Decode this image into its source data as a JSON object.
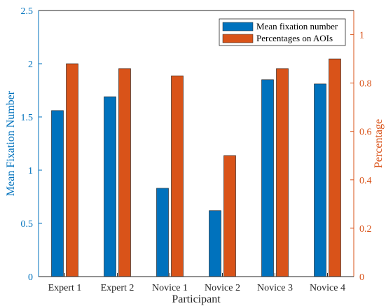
{
  "chart_data": {
    "type": "bar",
    "xlabel": "Participant",
    "categories": [
      "Expert 1",
      "Expert 2",
      "Novice 1",
      "Novice 2",
      "Novice 3",
      "Novice 4"
    ],
    "left_axis": {
      "label": "Mean Fixation Number",
      "ylim": [
        0,
        2.5
      ],
      "ticks": [
        "0",
        "0.5",
        "1",
        "1.5",
        "2",
        "2.5"
      ],
      "color": "#0072BD"
    },
    "right_axis": {
      "label": "Percentage",
      "ylim": [
        0,
        1.1
      ],
      "ticks": [
        "0",
        "0.2",
        "0.4",
        "0.6",
        "0.8",
        "1"
      ],
      "color": "#D95319"
    },
    "series": [
      {
        "name": "Mean fixation number",
        "axis": "left",
        "color": "#0072BD",
        "values": [
          1.56,
          1.69,
          0.83,
          0.62,
          1.85,
          1.81
        ]
      },
      {
        "name": "Percentages on AOIs",
        "axis": "right",
        "color": "#D95319",
        "values": [
          0.88,
          0.86,
          0.83,
          0.5,
          0.86,
          0.9
        ]
      }
    ],
    "legend_position": "top-right",
    "grid": false
  }
}
